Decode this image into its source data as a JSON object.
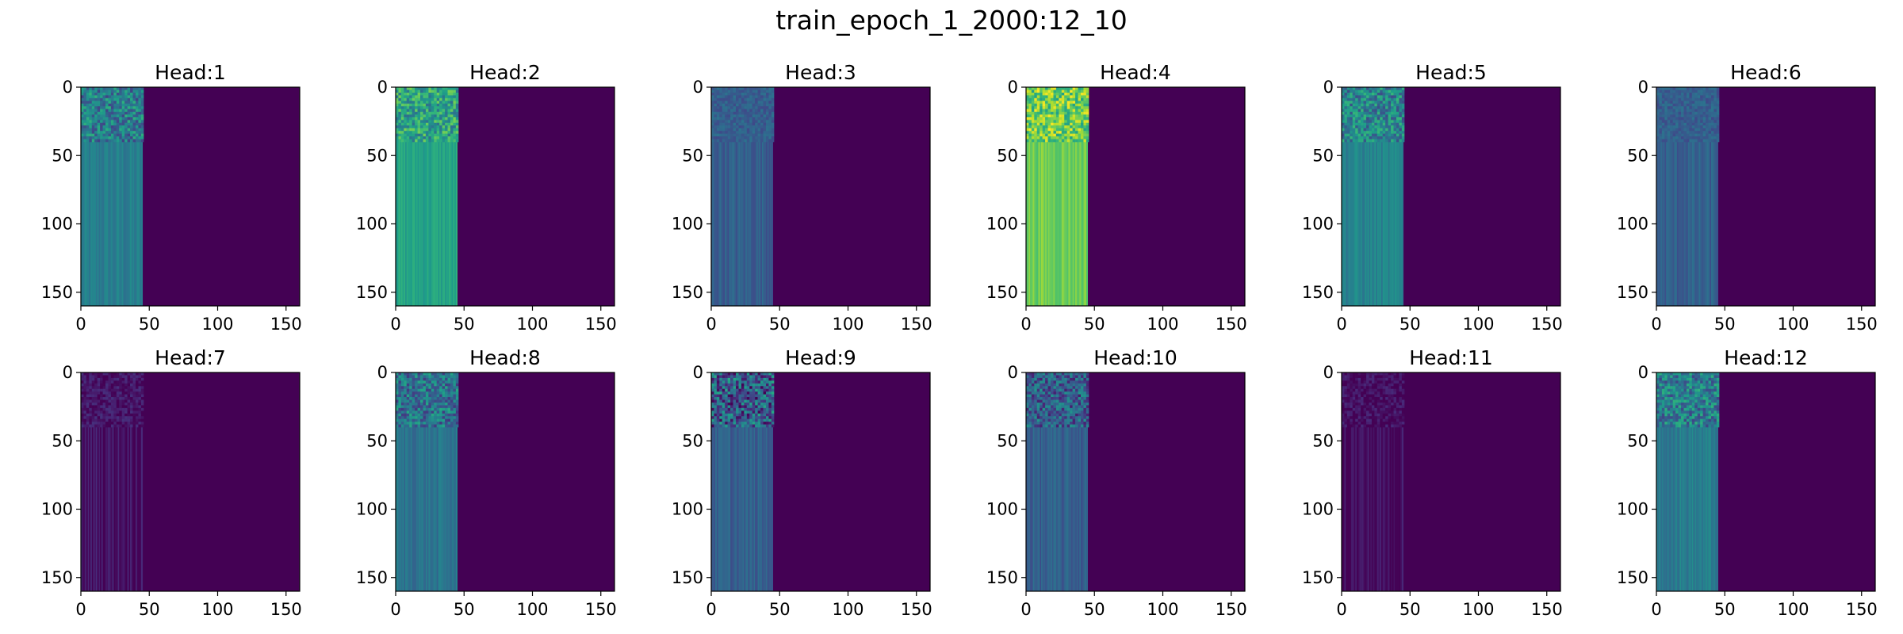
{
  "figure": {
    "title": "train_epoch_1_2000:12_10",
    "colormap": "viridis",
    "background": "#ffffff"
  },
  "chart_data": {
    "type": "heatmap",
    "title": "train_epoch_1_2000:12_10",
    "grid": false,
    "matrix_size": 160,
    "active_columns": [
      0,
      45
    ],
    "axes": {
      "x": {
        "range": [
          0,
          160
        ],
        "ticks": [
          "0",
          "50",
          "100",
          "150"
        ]
      },
      "y": {
        "range": [
          0,
          160
        ],
        "ticks": [
          "0",
          "50",
          "100",
          "150"
        ],
        "inverted": true
      }
    },
    "background_color": "#440154",
    "panels": [
      {
        "title": "Head:1",
        "level": 0.42,
        "top_texture": "strong"
      },
      {
        "title": "Head:2",
        "level": 0.58,
        "top_texture": "strong"
      },
      {
        "title": "Head:3",
        "level": 0.3,
        "top_texture": "weak"
      },
      {
        "title": "Head:4",
        "level": 0.78,
        "top_texture": "strong"
      },
      {
        "title": "Head:5",
        "level": 0.45,
        "top_texture": "strong"
      },
      {
        "title": "Head:6",
        "level": 0.3,
        "top_texture": "weak"
      },
      {
        "title": "Head:7",
        "level": 0.06,
        "top_texture": "weak"
      },
      {
        "title": "Head:8",
        "level": 0.38,
        "top_texture": "strong"
      },
      {
        "title": "Head:9",
        "level": 0.3,
        "top_texture": "speckled"
      },
      {
        "title": "Head:10",
        "level": 0.3,
        "top_texture": "strong"
      },
      {
        "title": "Head:11",
        "level": 0.04,
        "top_texture": "weak"
      },
      {
        "title": "Head:12",
        "level": 0.42,
        "top_texture": "strong"
      }
    ]
  }
}
